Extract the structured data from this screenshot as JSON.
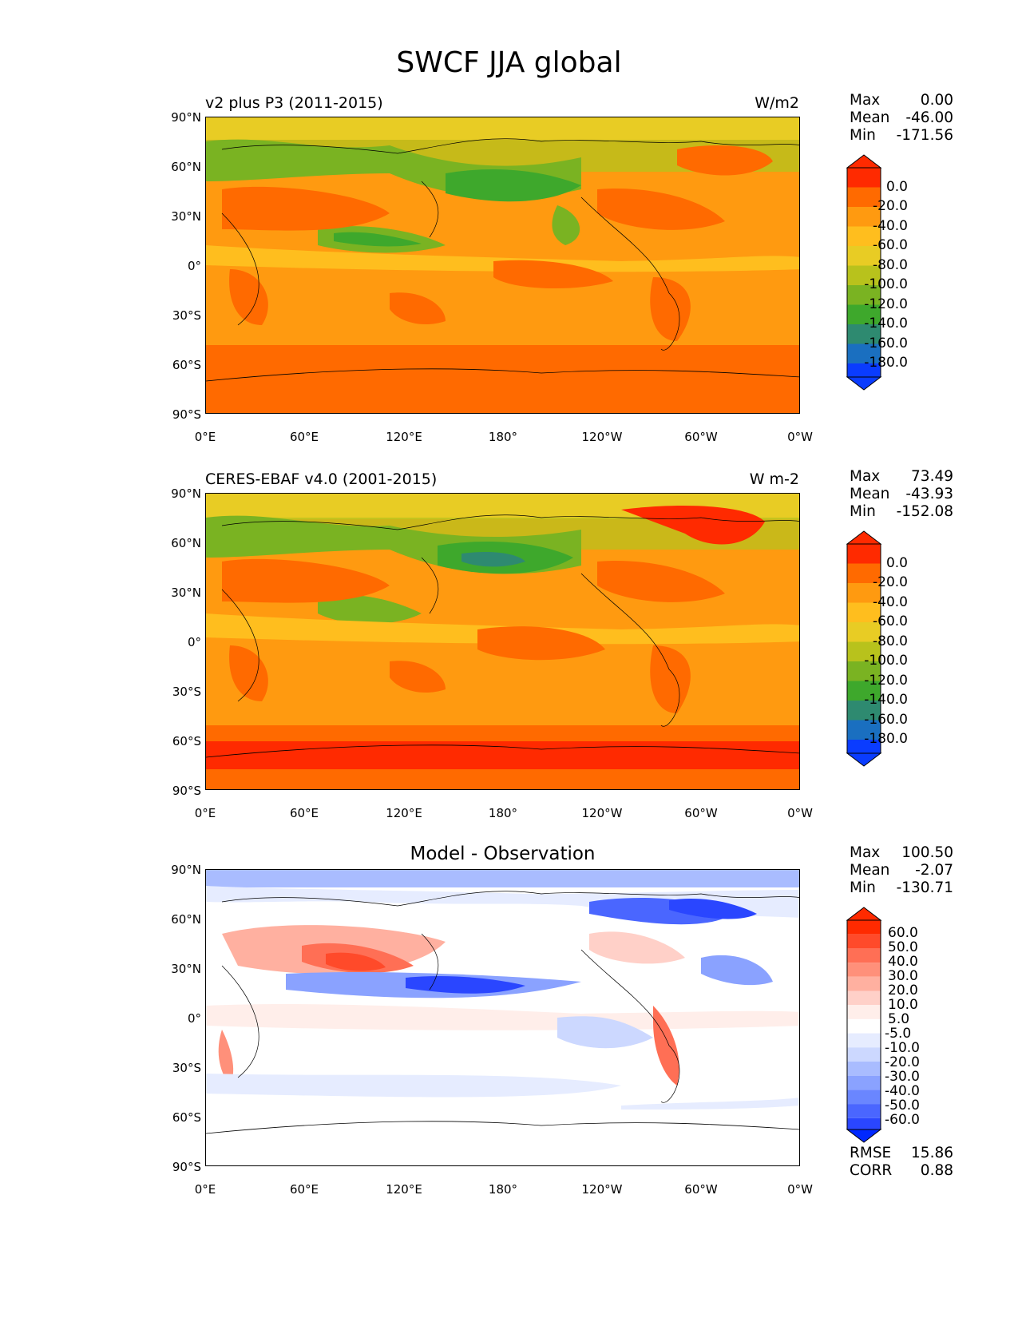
{
  "title": "SWCF JJA global",
  "axes": {
    "y_ticks": [
      "90°N",
      "60°N",
      "30°N",
      "0°",
      "30°S",
      "60°S",
      "90°S"
    ],
    "x_ticks": [
      "0°E",
      "60°E",
      "120°E",
      "180°",
      "120°W",
      "60°W",
      "0°W"
    ]
  },
  "panels": [
    {
      "title_left": "v2 plus P3 (2011-2015)",
      "title_right": "W/m2",
      "stats": [
        {
          "label": "Max",
          "value": "0.00"
        },
        {
          "label": "Mean",
          "value": "-46.00"
        },
        {
          "label": "Min",
          "value": "-171.56"
        }
      ],
      "colorbar_labels": [
        "0.0",
        "-20.0",
        "-40.0",
        "-60.0",
        "-80.0",
        "-100.0",
        "-120.0",
        "-140.0",
        "-160.0",
        "-180.0"
      ]
    },
    {
      "title_left": "CERES-EBAF v4.0 (2001-2015)",
      "title_right": "W m-2",
      "stats": [
        {
          "label": "Max",
          "value": "73.49"
        },
        {
          "label": "Mean",
          "value": "-43.93"
        },
        {
          "label": "Min",
          "value": "-152.08"
        }
      ],
      "colorbar_labels": [
        "0.0",
        "-20.0",
        "-40.0",
        "-60.0",
        "-80.0",
        "-100.0",
        "-120.0",
        "-140.0",
        "-160.0",
        "-180.0"
      ]
    },
    {
      "title_center": "Model - Observation",
      "stats": [
        {
          "label": "Max",
          "value": "100.50"
        },
        {
          "label": "Mean",
          "value": "-2.07"
        },
        {
          "label": "Min",
          "value": "-130.71"
        }
      ],
      "colorbar_labels": [
        "60.0",
        "50.0",
        "40.0",
        "30.0",
        "20.0",
        "10.0",
        "5.0",
        "-5.0",
        "-10.0",
        "-20.0",
        "-30.0",
        "-40.0",
        "-50.0",
        "-60.0"
      ],
      "metrics": [
        {
          "label": "RMSE",
          "value": "15.86"
        },
        {
          "label": "CORR",
          "value": "0.88"
        }
      ]
    }
  ],
  "colors": {
    "swcf_levels": [
      "#ff2a00",
      "#ff6a00",
      "#ff9a10",
      "#ffbe1e",
      "#e8cc24",
      "#b8c21c",
      "#7ab322",
      "#3ea82c",
      "#2e8a70",
      "#1a6fc0",
      "#0a3cff"
    ],
    "diff_levels": [
      "#ff2a00",
      "#ff4a2a",
      "#ff6f55",
      "#ff907a",
      "#ffb0a0",
      "#ffd0c8",
      "#ffeeea",
      "#ffffff",
      "#e6ecff",
      "#ccd8ff",
      "#a9bcff",
      "#8aa2ff",
      "#6a86ff",
      "#4a66ff",
      "#2a46ff",
      "#0028ff"
    ]
  }
}
